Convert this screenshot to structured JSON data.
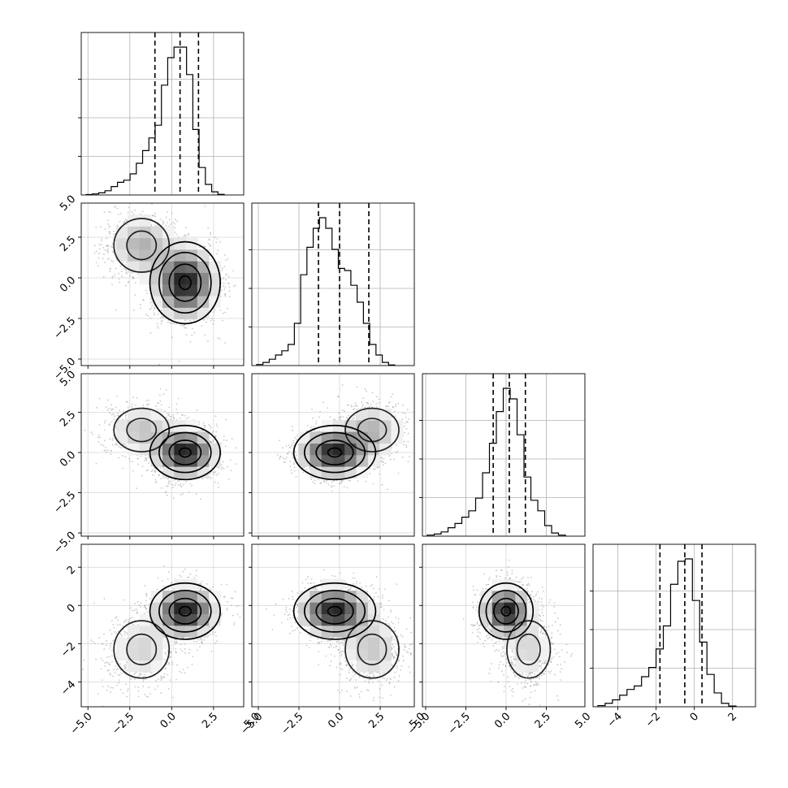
{
  "chart_data": {
    "type": "corner",
    "n_params": 4,
    "ticks": {
      "p0": [
        "−5.0",
        "−2.5",
        "0.0",
        "2.5",
        "5.0"
      ],
      "p1": [
        "−5.0",
        "−2.5",
        "0.0",
        "2.5",
        "5.0"
      ],
      "p2": [
        "−5.0",
        "−2.5",
        "0.0",
        "2.5",
        "5.0"
      ],
      "p3": [
        "−4",
        "−2",
        "0",
        "2"
      ]
    },
    "tick_values": {
      "p0": [
        -5,
        -2.5,
        0,
        2.5,
        5
      ],
      "p1": [
        -5,
        -2.5,
        0,
        2.5,
        5
      ],
      "p2": [
        -5,
        -2.5,
        0,
        2.5,
        5
      ],
      "p3": [
        -4,
        -2,
        0,
        2
      ]
    },
    "ranges": {
      "p0": [
        -5.4,
        4.3
      ],
      "p1": [
        -5.4,
        4.6
      ],
      "p2": [
        -5.2,
        4.9
      ],
      "p3": [
        -5.3,
        3.2
      ]
    },
    "quantiles": {
      "p0": [
        -1.0,
        0.5,
        1.6
      ],
      "p1": [
        -1.3,
        0.0,
        1.8
      ],
      "p2": [
        -0.8,
        0.2,
        1.2
      ],
      "p3": [
        -1.8,
        -0.5,
        0.4
      ]
    },
    "histograms": {
      "p0": [
        0.2,
        0.5,
        1.0,
        2,
        4,
        6,
        7,
        10,
        15,
        21,
        27,
        33,
        52,
        65,
        70,
        70,
        57,
        31,
        13,
        5,
        1.5,
        0.3
      ],
      "p1": [
        0.5,
        1.5,
        3,
        5,
        7,
        10,
        20,
        43,
        56,
        65,
        70,
        65,
        55,
        46,
        45,
        38,
        30,
        20,
        10,
        5,
        1.5,
        0.3
      ],
      "p2": [
        0.5,
        1,
        2,
        4,
        6,
        9,
        12,
        18,
        30,
        44,
        59,
        70,
        65,
        48,
        28,
        17,
        12,
        5,
        1.5,
        0.5
      ],
      "p3": [
        0.5,
        1.5,
        3,
        5,
        7.5,
        9,
        13,
        17,
        25,
        35,
        53,
        63,
        64,
        46,
        28,
        14,
        6,
        1.5,
        0.3
      ]
    },
    "components": {
      "p0": [
        [
          0.8,
          1.0
        ],
        [
          -1.8,
          1.1
        ]
      ],
      "p1": [
        [
          -0.3,
          1.2
        ],
        [
          2.0,
          1.1
        ]
      ],
      "p2": [
        [
          0.0,
          0.8
        ],
        [
          1.4,
          0.9
        ]
      ],
      "p3": [
        [
          -0.3,
          0.7
        ],
        [
          -2.3,
          1.0
        ]
      ]
    },
    "component_weights": [
      0.72,
      0.28
    ],
    "samples_per_panel": 2200,
    "show_grid": true,
    "contour_levels": 4
  }
}
